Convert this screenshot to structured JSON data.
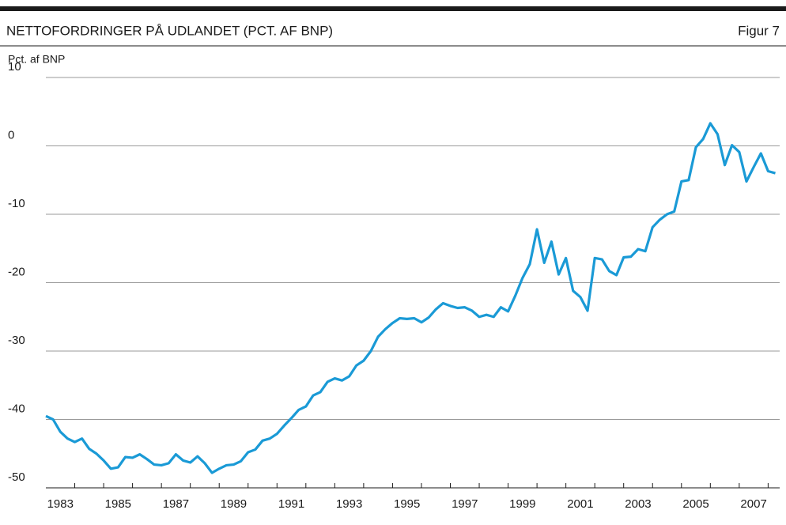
{
  "chart_data": {
    "type": "line",
    "title": "NETTOFORDRINGER PÅ UDLANDET (PCT. AF BNP)",
    "figure_label": "Figur 7",
    "y_label": "Pct. af BNP",
    "x": [
      1983,
      1983.25,
      1983.5,
      1983.75,
      1984,
      1984.25,
      1984.5,
      1984.75,
      1985,
      1985.25,
      1985.5,
      1985.75,
      1986,
      1986.25,
      1986.5,
      1986.75,
      1987,
      1987.25,
      1987.5,
      1987.75,
      1988,
      1988.25,
      1988.5,
      1988.75,
      1989,
      1989.25,
      1989.5,
      1989.75,
      1990,
      1990.25,
      1990.5,
      1990.75,
      1991,
      1991.25,
      1991.5,
      1991.75,
      1992,
      1992.25,
      1992.5,
      1992.75,
      1993,
      1993.25,
      1993.5,
      1993.75,
      1994,
      1994.25,
      1994.5,
      1994.75,
      1995,
      1995.25,
      1995.5,
      1995.75,
      1996,
      1996.25,
      1996.5,
      1996.75,
      1997,
      1997.25,
      1997.5,
      1997.75,
      1998,
      1998.25,
      1998.5,
      1998.75,
      1999,
      1999.25,
      1999.5,
      1999.75,
      2000,
      2000.25,
      2000.5,
      2000.75,
      2001,
      2001.25,
      2001.5,
      2001.75,
      2002,
      2002.25,
      2002.5,
      2002.75,
      2003,
      2003.25,
      2003.5,
      2003.75,
      2004,
      2004.25,
      2004.5,
      2004.75,
      2005,
      2005.25,
      2005.5,
      2005.75,
      2006,
      2006.25,
      2006.5,
      2006.75,
      2007,
      2007.25,
      2007.5,
      2007.75,
      2008,
      2008.25
    ],
    "series": [
      {
        "name": "Nettofordringer",
        "color": "#1a9ad6",
        "values": [
          -39.5,
          -40,
          -41.8,
          -42.8,
          -43.3,
          -42.8,
          -44.3,
          -45,
          -46,
          -47.2,
          -47,
          -45.5,
          -45.6,
          -45.1,
          -45.8,
          -46.6,
          -46.7,
          -46.4,
          -45.1,
          -46,
          -46.3,
          -45.4,
          -46.4,
          -47.8,
          -47.2,
          -46.7,
          -46.6,
          -46.1,
          -44.8,
          -44.4,
          -43.1,
          -42.8,
          -42.1,
          -40.9,
          -39.8,
          -38.6,
          -38.1,
          -36.5,
          -36,
          -34.5,
          -34,
          -34.3,
          -33.7,
          -32.1,
          -31.4,
          -30,
          -27.9,
          -26.8,
          -25.9,
          -25.2,
          -25.3,
          -25.2,
          -25.8,
          -25.1,
          -23.9,
          -23,
          -23.4,
          -23.7,
          -23.6,
          -24.1,
          -25,
          -24.7,
          -25,
          -23.6,
          -24.2,
          -21.9,
          -19.3,
          -17.3,
          -12.2,
          -17.1,
          -14,
          -18.8,
          -16.4,
          -21.2,
          -22.1,
          -24.1,
          -16.4,
          -16.6,
          -18.3,
          -18.9,
          -16.3,
          -16.2,
          -15.1,
          -15.4,
          -11.9,
          -10.8,
          -10,
          -9.6,
          -5.2,
          -5,
          -0.2,
          1,
          3.3,
          1.7,
          -2.8,
          0.1,
          -0.9,
          -5.2,
          -3.1,
          -1.1,
          -3.7,
          -4
        ]
      }
    ],
    "xlim": [
      1983,
      2008.4
    ],
    "xticks": [
      {
        "value": 1983.5,
        "label": "1983"
      },
      {
        "value": 1985.5,
        "label": "1985"
      },
      {
        "value": 1987.5,
        "label": "1987"
      },
      {
        "value": 1989.5,
        "label": "1989"
      },
      {
        "value": 1991.5,
        "label": "1991"
      },
      {
        "value": 1993.5,
        "label": "1993"
      },
      {
        "value": 1995.5,
        "label": "1995"
      },
      {
        "value": 1997.5,
        "label": "1997"
      },
      {
        "value": 1999.5,
        "label": "1999"
      },
      {
        "value": 2001.5,
        "label": "2001"
      },
      {
        "value": 2003.5,
        "label": "2003"
      },
      {
        "value": 2005.5,
        "label": "2005"
      },
      {
        "value": 2007.5,
        "label": "2007"
      }
    ],
    "xminor_ticks": [
      1984,
      1985,
      1986,
      1987,
      1988,
      1989,
      1990,
      1991,
      1992,
      1993,
      1994,
      1995,
      1996,
      1997,
      1998,
      1999,
      2000,
      2001,
      2002,
      2003,
      2004,
      2005,
      2006,
      2007,
      2008
    ],
    "ylim": [
      -50,
      10
    ],
    "yticks": [
      -50,
      -40,
      -30,
      -20,
      -10,
      0,
      10
    ],
    "grid": true
  }
}
